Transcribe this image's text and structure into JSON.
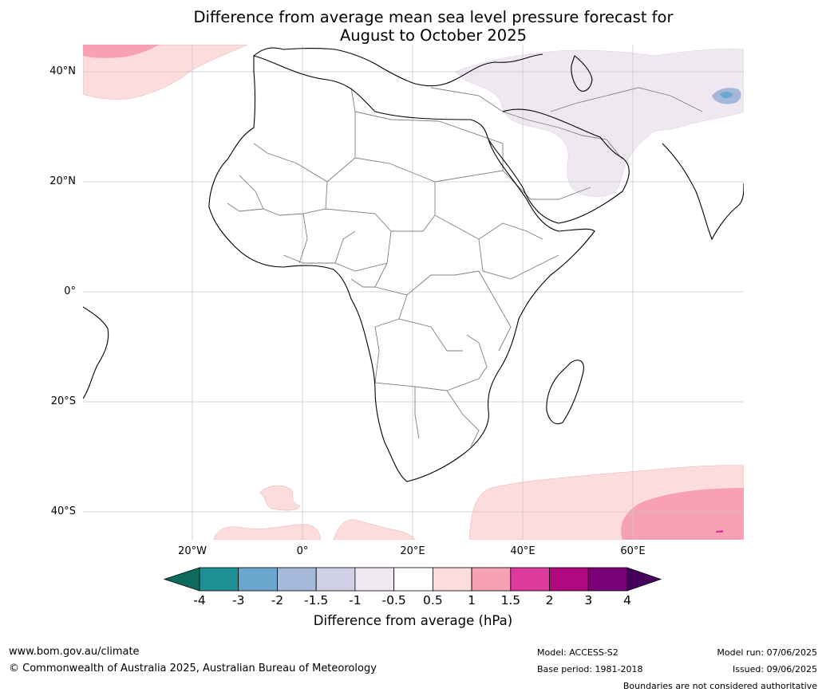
{
  "title": {
    "line1": "Difference from average mean sea level pressure forecast for",
    "line2": "August to October 2025"
  },
  "map": {
    "lat_labels": [
      "40°N",
      "20°N",
      "0°",
      "20°S",
      "40°S"
    ],
    "lon_labels": [
      "20°W",
      "0°",
      "20°E",
      "40°E",
      "60°E"
    ],
    "colors": {
      "ocean": "#ffffff",
      "land": "#ffffff",
      "coast": "#000000",
      "borders": "#808080",
      "grid": "#c8c8c8"
    }
  },
  "colorbar": {
    "ticks": [
      "-4",
      "-3",
      "-2",
      "-1.5",
      "-1",
      "-0.5",
      "0.5",
      "1",
      "1.5",
      "2",
      "3",
      "4"
    ],
    "colors": [
      "#0d6b5e",
      "#1f8f96",
      "#6aa8d0",
      "#a6b8d9",
      "#cfd0e5",
      "#efe8f0",
      "#ffffff",
      "#fddcdc",
      "#f8a0b4",
      "#dc3a9c",
      "#b0087e",
      "#7a0078",
      "#45005e"
    ],
    "label": "Difference from average (hPa)"
  },
  "footer": {
    "url": "www.bom.gov.au/climate",
    "copyright": "© Commonwealth of Australia 2025, Australian Bureau of Meteorology",
    "model": "Model: ACCESS-S2",
    "base_period": "Base period: 1981-2018",
    "model_run": "Model run: 07/06/2025",
    "issued": "Issued: 09/06/2025",
    "disclaimer": "Boundaries are not considered authoritative"
  }
}
